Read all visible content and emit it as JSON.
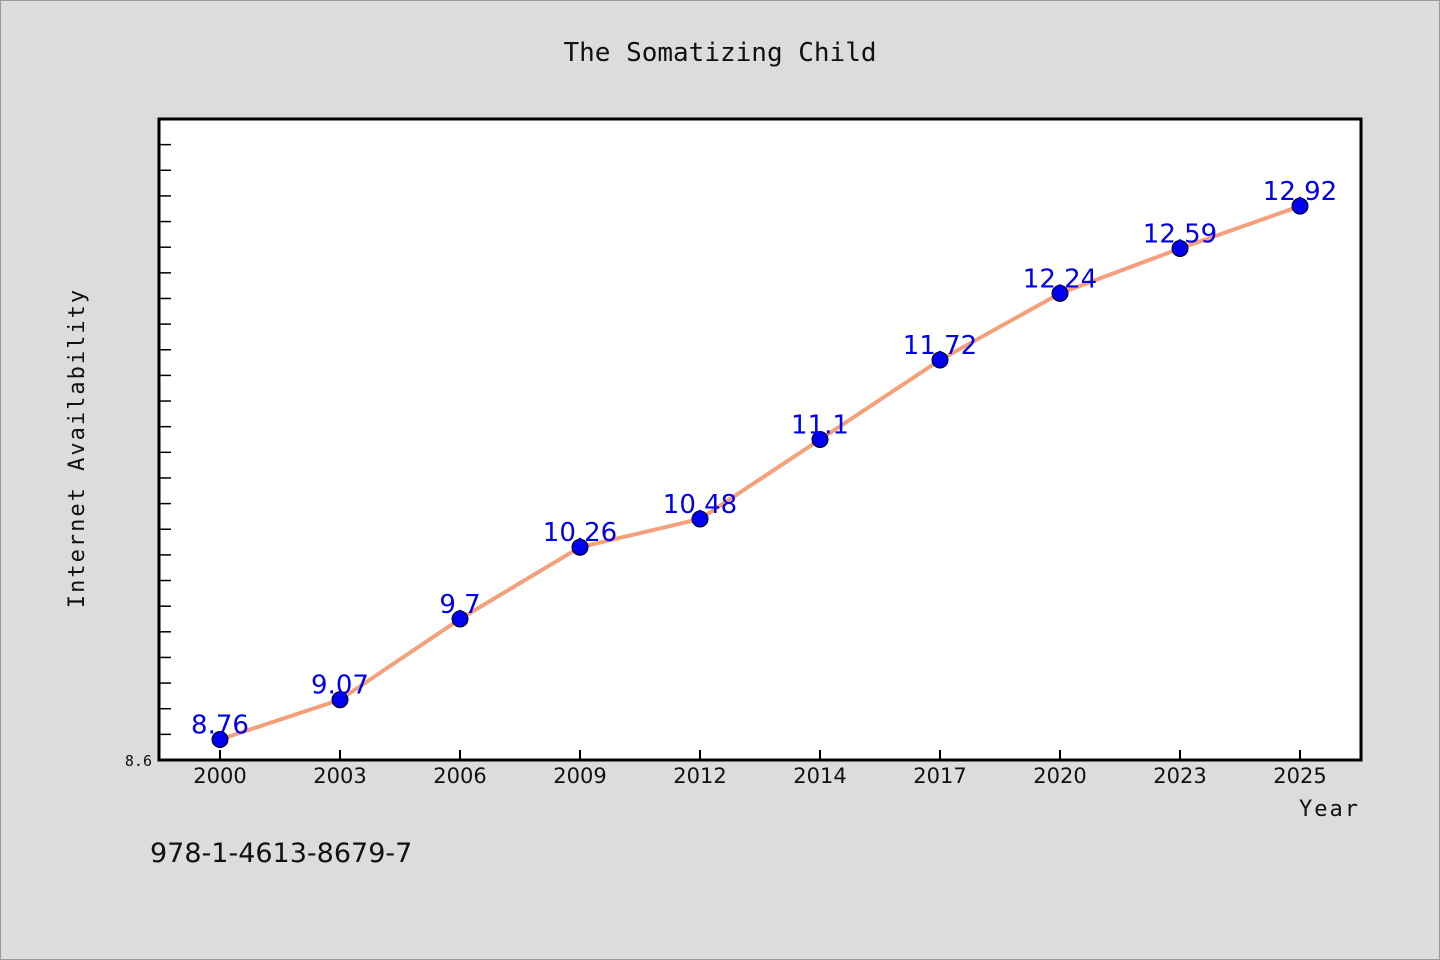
{
  "chart_data": {
    "type": "line",
    "title": "The Somatizing Child",
    "xlabel": "Year",
    "ylabel": "Internet Availability",
    "categories": [
      "2000",
      "2003",
      "2006",
      "2009",
      "2012",
      "2014",
      "2017",
      "2020",
      "2023",
      "2025"
    ],
    "series": [
      {
        "values": [
          8.76,
          9.07,
          9.7,
          10.26,
          10.48,
          11.1,
          11.72,
          12.24,
          12.59,
          12.92
        ],
        "labels": [
          "8.76",
          "9.07",
          "9.7",
          "10.26",
          "10.48",
          "11.1",
          "11.72",
          "12.24",
          "12.59",
          "12.92"
        ],
        "line_color": "#f4a07a",
        "marker_color": "#0000ee"
      }
    ],
    "ylim": [
      8.6,
      13.6
    ],
    "y_min_label": "8.6",
    "grid": false,
    "legend": "none"
  },
  "footer_text": "978-1-4613-8679-7"
}
